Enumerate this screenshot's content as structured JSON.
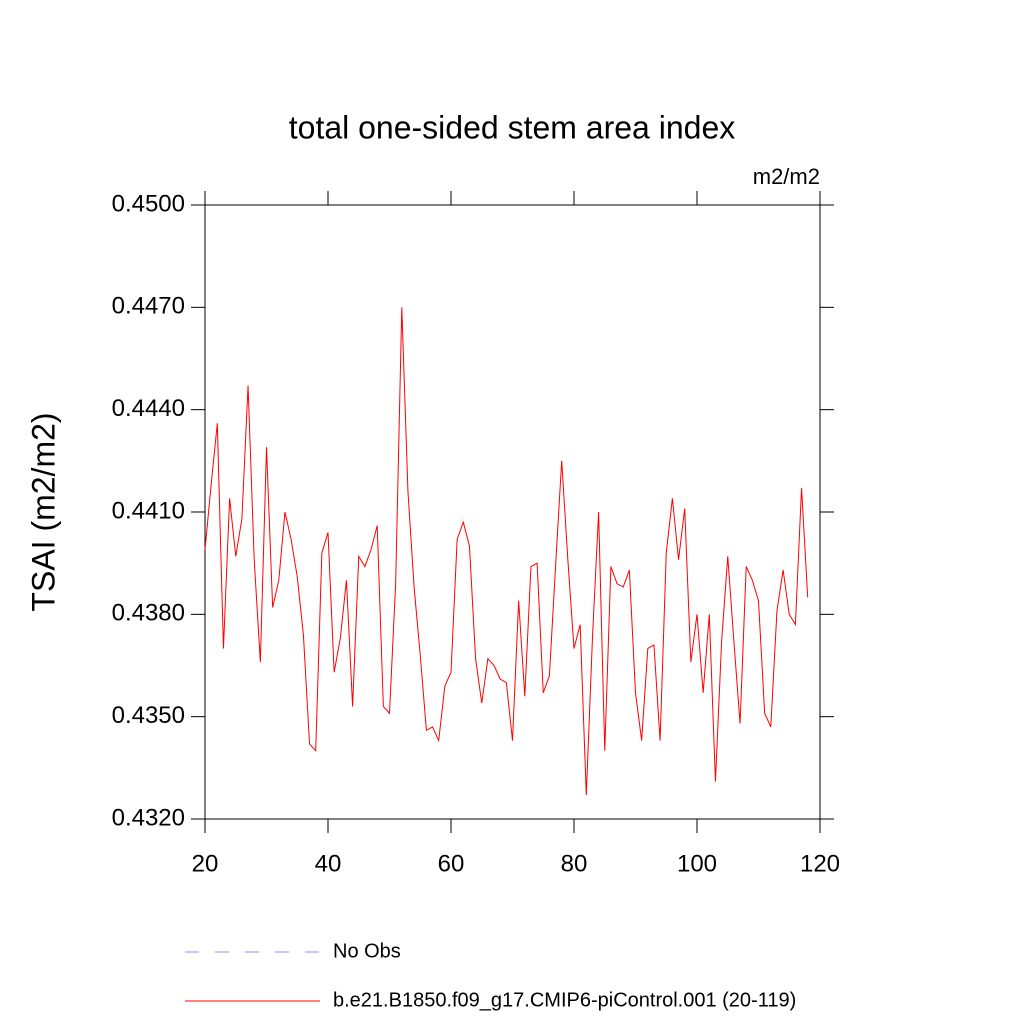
{
  "chart_data": {
    "type": "line",
    "title": "total one-sided stem area index",
    "units": "m2/m2",
    "y_label": "TSAI  (m2/m2)",
    "x": [
      20,
      21,
      22,
      23,
      24,
      25,
      26,
      27,
      28,
      29,
      30,
      31,
      32,
      33,
      34,
      35,
      36,
      37,
      38,
      39,
      40,
      41,
      42,
      43,
      44,
      45,
      46,
      47,
      48,
      49,
      50,
      51,
      52,
      53,
      54,
      55,
      56,
      57,
      58,
      59,
      60,
      61,
      62,
      63,
      64,
      65,
      66,
      67,
      68,
      69,
      70,
      71,
      72,
      73,
      74,
      75,
      76,
      77,
      78,
      79,
      80,
      81,
      82,
      83,
      84,
      85,
      86,
      87,
      88,
      89,
      90,
      91,
      92,
      93,
      94,
      95,
      96,
      97,
      98,
      99,
      100,
      101,
      102,
      103,
      104,
      105,
      106,
      107,
      108,
      109,
      110,
      111,
      112,
      113,
      114,
      115,
      116,
      117,
      118
    ],
    "series": [
      {
        "name": "b.e21.B1850.f09_g17.CMIP6-piControl.001 (20-119)",
        "color": "#ff0000",
        "values": [
          0.4399,
          0.4418,
          0.4436,
          0.437,
          0.4414,
          0.4397,
          0.4408,
          0.4447,
          0.4396,
          0.4366,
          0.4429,
          0.4382,
          0.439,
          0.441,
          0.4402,
          0.4391,
          0.4374,
          0.4342,
          0.434,
          0.4398,
          0.4404,
          0.4363,
          0.4373,
          0.439,
          0.4353,
          0.4397,
          0.4394,
          0.4399,
          0.4406,
          0.4353,
          0.4351,
          0.4389,
          0.447,
          0.4416,
          0.4388,
          0.4368,
          0.4346,
          0.4347,
          0.4343,
          0.4359,
          0.4363,
          0.4402,
          0.4407,
          0.44,
          0.4367,
          0.4354,
          0.4367,
          0.4365,
          0.4361,
          0.436,
          0.4343,
          0.4384,
          0.4356,
          0.4394,
          0.4395,
          0.4357,
          0.4362,
          0.4394,
          0.4425,
          0.4396,
          0.437,
          0.4377,
          0.4327,
          0.4373,
          0.441,
          0.434,
          0.4394,
          0.4389,
          0.4388,
          0.4393,
          0.4357,
          0.4343,
          0.437,
          0.4371,
          0.4343,
          0.4398,
          0.4414,
          0.4396,
          0.4411,
          0.4366,
          0.438,
          0.4357,
          0.438,
          0.4331,
          0.4372,
          0.4397,
          0.4372,
          0.4348,
          0.4394,
          0.439,
          0.4384,
          0.4351,
          0.4347,
          0.4381,
          0.4393,
          0.438,
          0.4377,
          0.4417,
          0.4385
        ]
      }
    ],
    "legend_extra": {
      "name": "No Obs",
      "color": "#8c8cff",
      "dashed": true
    },
    "xlim": [
      20,
      120
    ],
    "xticks": [
      20,
      40,
      60,
      80,
      100,
      120
    ],
    "ylim": [
      0.432,
      0.45
    ],
    "yticks": [
      {
        "value": 0.432,
        "label": "0.4320"
      },
      {
        "value": 0.435,
        "label": "0.4350"
      },
      {
        "value": 0.438,
        "label": "0.4380"
      },
      {
        "value": 0.441,
        "label": "0.4410"
      },
      {
        "value": 0.444,
        "label": "0.4440"
      },
      {
        "value": 0.447,
        "label": "0.4470"
      },
      {
        "value": 0.45,
        "label": "0.4500"
      }
    ],
    "grid": false
  }
}
